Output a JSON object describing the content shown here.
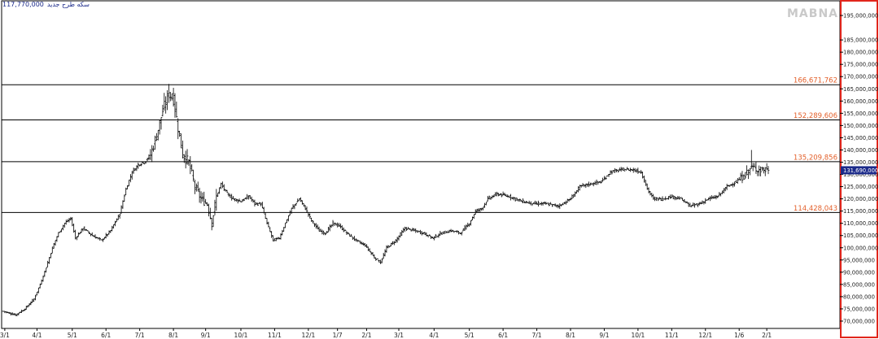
{
  "header": {
    "value": "117,770,000",
    "label": "سکه طرح جدید"
  },
  "watermark": "MABNA",
  "colors": {
    "background": "#ffffff",
    "frame": "#e1261c",
    "candle": "#000000",
    "level_line": "#000000",
    "level_label": "#e3602b",
    "last_price_bg": "#1b2a8a",
    "last_price_text": "#ffffff",
    "axis_text": "#222222"
  },
  "chart_data": {
    "type": "candlestick",
    "title": "",
    "xlabel": "",
    "ylabel": "",
    "ylim": [
      67000000,
      201000000
    ],
    "y_ticks": [
      {
        "value": 70000000,
        "label": "70,000,000"
      },
      {
        "value": 75000000,
        "label": "75,000,000"
      },
      {
        "value": 80000000,
        "label": "80,000,000"
      },
      {
        "value": 85000000,
        "label": "85,000,000"
      },
      {
        "value": 90000000,
        "label": "90,000,000"
      },
      {
        "value": 95000000,
        "label": "95,000,000"
      },
      {
        "value": 100000000,
        "label": "100,000,000"
      },
      {
        "value": 105000000,
        "label": "105,000,000"
      },
      {
        "value": 110000000,
        "label": "110,000,000"
      },
      {
        "value": 115000000,
        "label": "115,000,000"
      },
      {
        "value": 120000000,
        "label": "120,000,000"
      },
      {
        "value": 125000000,
        "label": "125,000,000"
      },
      {
        "value": 130000000,
        "label": "130,000,000"
      },
      {
        "value": 135000000,
        "label": "135,000,000"
      },
      {
        "value": 140000000,
        "label": "140,000,000"
      },
      {
        "value": 145000000,
        "label": "145,000,000"
      },
      {
        "value": 150000000,
        "label": "150,000,000"
      },
      {
        "value": 155000000,
        "label": "155,000,000"
      },
      {
        "value": 160000000,
        "label": "160,000,000"
      },
      {
        "value": 165000000,
        "label": "165,000,000"
      },
      {
        "value": 170000000,
        "label": "170,000,000"
      },
      {
        "value": 175000000,
        "label": "175,000,000"
      },
      {
        "value": 180000000,
        "label": "180,000,000"
      },
      {
        "value": 185000000,
        "label": "185,000,000"
      },
      {
        "value": 195000000,
        "label": "195,000,000"
      }
    ],
    "x_ticks": [
      {
        "label": "3/1",
        "index": 1
      },
      {
        "label": "4/1",
        "index": 22
      },
      {
        "label": "5/1",
        "index": 45
      },
      {
        "label": "6/1",
        "index": 67
      },
      {
        "label": "7/1",
        "index": 89
      },
      {
        "label": "8/1",
        "index": 111
      },
      {
        "label": "9/1",
        "index": 132
      },
      {
        "label": "10/1",
        "index": 155
      },
      {
        "label": "11/1",
        "index": 177
      },
      {
        "label": "12/1",
        "index": 199
      },
      {
        "label": "1/7",
        "index": 218
      },
      {
        "label": "2/1",
        "index": 237
      },
      {
        "label": "3/1",
        "index": 258
      },
      {
        "label": "4/1",
        "index": 281
      },
      {
        "label": "5/1",
        "index": 304
      },
      {
        "label": "6/1",
        "index": 326
      },
      {
        "label": "7/1",
        "index": 348
      },
      {
        "label": "8/1",
        "index": 370
      },
      {
        "label": "9/1",
        "index": 392
      },
      {
        "label": "10/1",
        "index": 414
      },
      {
        "label": "11/1",
        "index": 436
      },
      {
        "label": "12/1",
        "index": 458
      },
      {
        "label": "1/6",
        "index": 480
      },
      {
        "label": "2/1",
        "index": 498
      }
    ],
    "levels": [
      {
        "value": 166671762,
        "label": "166,671,762"
      },
      {
        "value": 152289606,
        "label": "152,289,606"
      },
      {
        "value": 135209856,
        "label": "135,209,856"
      },
      {
        "value": 114428043,
        "label": "114,428,043"
      }
    ],
    "last_price": {
      "value": 131690000,
      "label": "131,690,000"
    },
    "bar_count": 500,
    "anchors": [
      [
        0,
        74000000
      ],
      [
        8,
        72500000
      ],
      [
        14,
        75000000
      ],
      [
        20,
        79000000
      ],
      [
        24,
        85000000
      ],
      [
        28,
        92000000
      ],
      [
        32,
        100000000
      ],
      [
        36,
        106000000
      ],
      [
        40,
        110000000
      ],
      [
        44,
        112000000
      ],
      [
        47,
        104000000
      ],
      [
        52,
        108000000
      ],
      [
        58,
        105000000
      ],
      [
        64,
        103000000
      ],
      [
        70,
        107000000
      ],
      [
        76,
        114000000
      ],
      [
        80,
        124000000
      ],
      [
        84,
        131000000
      ],
      [
        88,
        134000000
      ],
      [
        92,
        135000000
      ],
      [
        96,
        138000000
      ],
      [
        100,
        146000000
      ],
      [
        104,
        156000000
      ],
      [
        108,
        163000000
      ],
      [
        111,
        161000000
      ],
      [
        114,
        149000000
      ],
      [
        117,
        138000000
      ],
      [
        121,
        135000000
      ],
      [
        125,
        125000000
      ],
      [
        129,
        120000000
      ],
      [
        133,
        118000000
      ],
      [
        136,
        110000000
      ],
      [
        139,
        121000000
      ],
      [
        142,
        126000000
      ],
      [
        146,
        122000000
      ],
      [
        150,
        120000000
      ],
      [
        155,
        119000000
      ],
      [
        160,
        121000000
      ],
      [
        164,
        118000000
      ],
      [
        168,
        118000000
      ],
      [
        172,
        110000000
      ],
      [
        176,
        103000000
      ],
      [
        180,
        104000000
      ],
      [
        184,
        110000000
      ],
      [
        188,
        116000000
      ],
      [
        193,
        120000000
      ],
      [
        197,
        116000000
      ],
      [
        201,
        111000000
      ],
      [
        206,
        107000000
      ],
      [
        210,
        106000000
      ],
      [
        215,
        110000000
      ],
      [
        219,
        109000000
      ],
      [
        224,
        106000000
      ],
      [
        230,
        103000000
      ],
      [
        236,
        101000000
      ],
      [
        242,
        96000000
      ],
      [
        246,
        94000000
      ],
      [
        250,
        100000000
      ],
      [
        256,
        103000000
      ],
      [
        262,
        108000000
      ],
      [
        268,
        107000000
      ],
      [
        274,
        106000000
      ],
      [
        280,
        104000000
      ],
      [
        286,
        106000000
      ],
      [
        292,
        107000000
      ],
      [
        298,
        106000000
      ],
      [
        304,
        110000000
      ],
      [
        308,
        115000000
      ],
      [
        312,
        116000000
      ],
      [
        316,
        120000000
      ],
      [
        322,
        122000000
      ],
      [
        330,
        121000000
      ],
      [
        338,
        119000000
      ],
      [
        346,
        118000000
      ],
      [
        354,
        118000000
      ],
      [
        362,
        117000000
      ],
      [
        370,
        120000000
      ],
      [
        376,
        125000000
      ],
      [
        382,
        126000000
      ],
      [
        390,
        127000000
      ],
      [
        396,
        131000000
      ],
      [
        404,
        132000000
      ],
      [
        410,
        132000000
      ],
      [
        416,
        131000000
      ],
      [
        420,
        124000000
      ],
      [
        424,
        120000000
      ],
      [
        430,
        120000000
      ],
      [
        436,
        121000000
      ],
      [
        442,
        120000000
      ],
      [
        448,
        117000000
      ],
      [
        454,
        118000000
      ],
      [
        460,
        120000000
      ],
      [
        466,
        121000000
      ],
      [
        472,
        125000000
      ],
      [
        478,
        127000000
      ],
      [
        484,
        130000000
      ],
      [
        488,
        133000000
      ],
      [
        492,
        132000000
      ],
      [
        499,
        131690000
      ]
    ]
  }
}
